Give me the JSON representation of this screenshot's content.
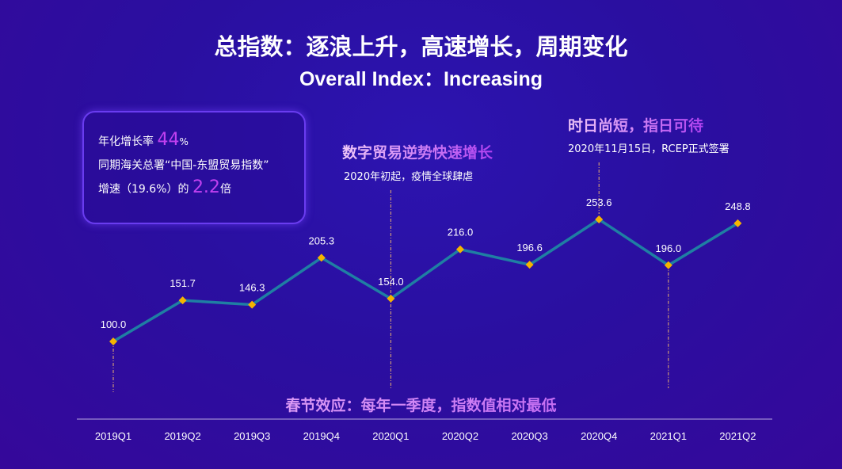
{
  "title_cn": "总指数：逐浪上升，高速增长，周期变化",
  "title_en": "Overall Index：Increasing",
  "info_box": {
    "line1_text": "年化增长率",
    "line1_value": "44",
    "line1_unit": "%",
    "line2": "同期海关总署“中国-东盟贸易指数”",
    "line3_text": "增速（19.6%）的",
    "line3_value": "2.2",
    "line3_unit": "倍"
  },
  "annotations": {
    "covid_title": "数字贸易逆势快速增长",
    "covid_sub": "2020年初起，疫情全球肆虐",
    "rcep_title": "时日尚短，指日可待",
    "rcep_sub": "2020年11月15日，RCEP正式签署",
    "spring_festival": "春节效应：每年一季度，指数值相对最低"
  },
  "colors": {
    "line": "#1f7fa3",
    "marker": "#f5b400",
    "guide": "#e8b070",
    "accent": "#c040f0"
  },
  "chart_data": {
    "type": "line",
    "categories": [
      "2019Q1",
      "2019Q2",
      "2019Q3",
      "2019Q4",
      "2020Q1",
      "2020Q2",
      "2020Q3",
      "2020Q4",
      "2021Q1",
      "2021Q2"
    ],
    "values": [
      100.0,
      151.7,
      146.3,
      205.3,
      154.0,
      216.0,
      196.6,
      253.6,
      196.0,
      248.8
    ],
    "data_labels": [
      "100.0",
      "151.7",
      "146.3",
      "205.3",
      "154.0",
      "216.0",
      "196.6",
      "253.6",
      "196.0",
      "248.8"
    ],
    "highlighted_categories": [
      "2019Q1",
      "2020Q1",
      "2020Q4",
      "2021Q1"
    ],
    "grid": false,
    "legend": "none"
  }
}
